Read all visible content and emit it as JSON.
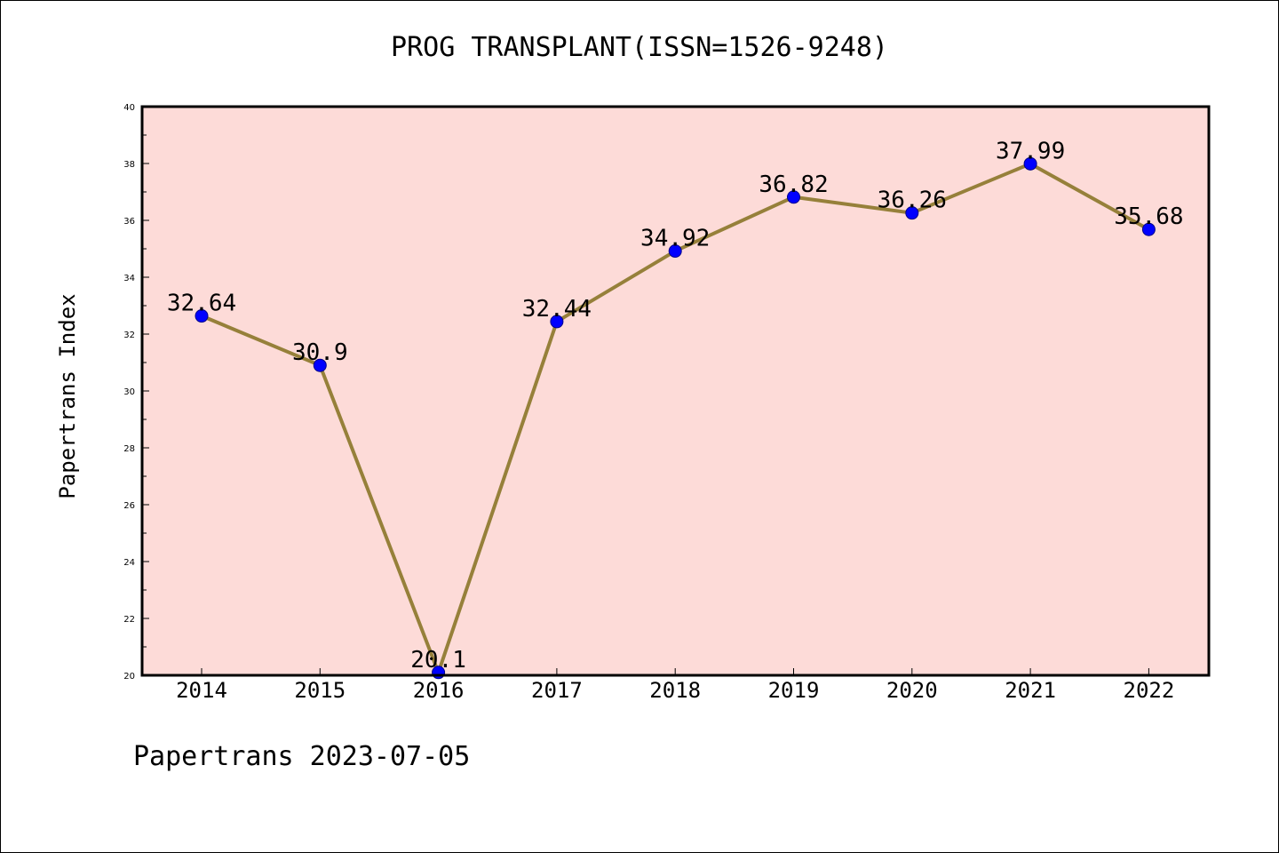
{
  "title": "PROG TRANSPLANT(ISSN=1526-9248)",
  "footer": "Papertrans 2023-07-05",
  "chart_data": {
    "type": "line",
    "title": "PROG TRANSPLANT(ISSN=1526-9248)",
    "xlabel": "",
    "ylabel": "Papertrans Index",
    "categories": [
      "2014",
      "2015",
      "2016",
      "2017",
      "2018",
      "2019",
      "2020",
      "2021",
      "2022"
    ],
    "values": [
      32.64,
      30.9,
      20.1,
      32.44,
      34.92,
      36.82,
      36.26,
      37.99,
      35.68
    ],
    "data_labels": [
      "32.64",
      "30.9",
      "20.1",
      "32.44",
      "34.92",
      "36.82",
      "36.26",
      "37.99",
      "35.68"
    ],
    "ylim": [
      20,
      40
    ],
    "yticks": [
      "20",
      "22",
      "24",
      "26",
      "28",
      "30",
      "32",
      "34",
      "36",
      "38",
      "40"
    ],
    "grid": false,
    "colors": {
      "plot_background": "#fddbd8",
      "line": "#96803a",
      "marker": "#0000ff",
      "marker_edge": "#00008b"
    }
  }
}
